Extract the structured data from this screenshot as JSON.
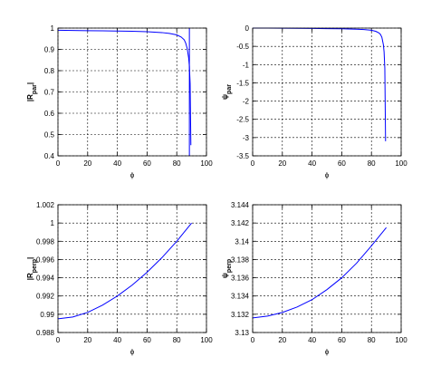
{
  "chart_data": [
    {
      "type": "line",
      "ylabel_parts": [
        "|R",
        "par",
        "|"
      ],
      "xlabel": "ϕ",
      "xlim": [
        0,
        100
      ],
      "xticks": [
        0,
        20,
        40,
        60,
        80,
        100
      ],
      "ylim": [
        0.4,
        1
      ],
      "yticks": [
        0.4,
        0.5,
        0.6,
        0.7,
        0.8,
        0.9,
        1
      ],
      "grid": true,
      "series": [
        {
          "color": "#0000ff",
          "x": [
            0,
            10,
            20,
            30,
            40,
            50,
            60,
            70,
            75,
            80,
            83,
            85,
            86,
            87,
            88,
            88.5,
            89,
            89.5
          ],
          "values": [
            0.99,
            0.989,
            0.988,
            0.987,
            0.986,
            0.985,
            0.983,
            0.979,
            0.975,
            0.968,
            0.958,
            0.945,
            0.93,
            0.905,
            0.86,
            0.82,
            0.74,
            0.45
          ]
        },
        {
          "color": "#0000ff",
          "x": [
            88.5,
            88.5
          ],
          "values": [
            0.4,
            1
          ]
        }
      ]
    },
    {
      "type": "line",
      "ylabel_parts": [
        "ψ",
        "par"
      ],
      "xlabel": "ϕ",
      "xlim": [
        0,
        100
      ],
      "xticks": [
        0,
        20,
        40,
        60,
        80,
        100
      ],
      "ylim": [
        -3.5,
        0
      ],
      "yticks": [
        -3.5,
        -3,
        -2.5,
        -2,
        -1.5,
        -1,
        -0.5,
        0
      ],
      "grid": true,
      "series": [
        {
          "color": "#0000ff",
          "x": [
            0,
            10,
            20,
            30,
            40,
            50,
            60,
            70,
            75,
            80,
            83,
            85,
            86,
            87,
            88,
            88.5,
            89,
            89.5
          ],
          "values": [
            0,
            0,
            -0.002,
            -0.005,
            -0.01,
            -0.015,
            -0.02,
            -0.03,
            -0.04,
            -0.06,
            -0.09,
            -0.13,
            -0.17,
            -0.25,
            -0.45,
            -0.65,
            -1.1,
            -3.1
          ]
        }
      ]
    },
    {
      "type": "line",
      "ylabel_parts": [
        "|R",
        "perp",
        "|"
      ],
      "xlabel": "ϕ",
      "xlim": [
        0,
        100
      ],
      "xticks": [
        0,
        20,
        40,
        60,
        80,
        100
      ],
      "ylim": [
        0.988,
        1.002
      ],
      "yticks": [
        0.988,
        0.99,
        0.992,
        0.994,
        0.996,
        0.998,
        1,
        1.002
      ],
      "grid": true,
      "series": [
        {
          "color": "#0000ff",
          "x": [
            0,
            10,
            20,
            30,
            40,
            50,
            60,
            70,
            80,
            90
          ],
          "values": [
            0.9895,
            0.9897,
            0.9902,
            0.991,
            0.992,
            0.9932,
            0.9946,
            0.9962,
            0.998,
            1.0
          ]
        }
      ]
    },
    {
      "type": "line",
      "ylabel_parts": [
        "ψ",
        "perp"
      ],
      "xlabel": "ϕ",
      "xlim": [
        0,
        100
      ],
      "xticks": [
        0,
        20,
        40,
        60,
        80,
        100
      ],
      "ylim": [
        3.13,
        3.144
      ],
      "yticks": [
        3.13,
        3.132,
        3.134,
        3.136,
        3.138,
        3.14,
        3.142,
        3.144
      ],
      "grid": true,
      "series": [
        {
          "color": "#0000ff",
          "x": [
            0,
            10,
            20,
            30,
            40,
            50,
            60,
            70,
            80,
            90
          ],
          "values": [
            3.1316,
            3.1318,
            3.1322,
            3.1328,
            3.1336,
            3.1347,
            3.136,
            3.1376,
            3.1395,
            3.1415
          ]
        }
      ]
    }
  ]
}
